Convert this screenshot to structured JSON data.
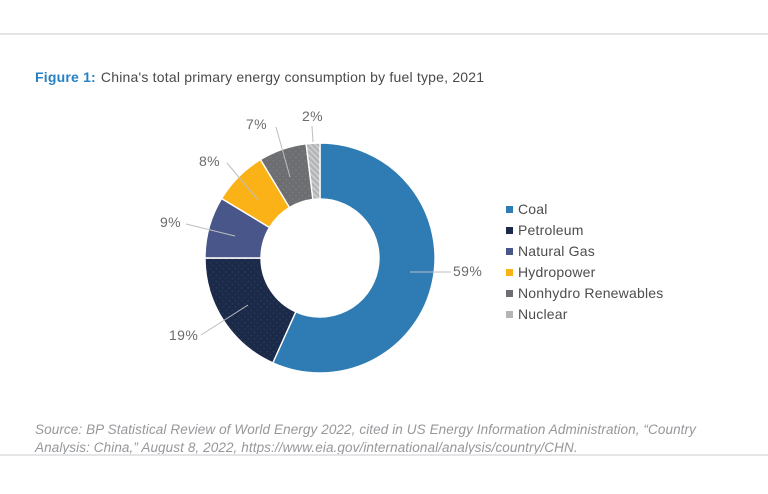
{
  "figure": {
    "label": "Figure 1:",
    "title": "China's total primary energy consumption by fuel type, 2021"
  },
  "source": "Source: BP Statistical Review of World Energy 2022, cited in US Energy Information Administration, “Country Analysis: China,” August 8, 2022, https://www.eia.gov/international/analysis/country/CHN.",
  "colors": {
    "figure_label_blue": "#2581C3",
    "title_text": "#4A4A4C",
    "pct_label_text": "#6A6B6E",
    "leader_line": "#BDBEC0",
    "legend_text": "#4D4D4F",
    "source_text": "#96979A",
    "rule_gray": "#E4E5E6",
    "slice_divider": "#FFFFFF"
  },
  "chart_data": {
    "type": "pie",
    "donut": true,
    "title": "China's total primary energy consumption by fuel type, 2021",
    "unit": "%",
    "legend_position": "right",
    "inner_radius_ratio": 0.51,
    "start_angle_deg": 0,
    "direction": "clockwise",
    "categories": [
      "Coal",
      "Petroleum",
      "Natural Gas",
      "Hydropower",
      "Nonhydro Renewables",
      "Nuclear"
    ],
    "values": [
      59,
      19,
      9,
      8,
      7,
      2
    ],
    "slices": [
      {
        "label": "Coal",
        "value": 59,
        "pct_label": "59%",
        "color": "#2E7CB3",
        "texture": "solid"
      },
      {
        "label": "Petroleum",
        "value": 19,
        "pct_label": "19%",
        "color": "#1B2A48",
        "texture": "dots",
        "accent": "#2E3D5F"
      },
      {
        "label": "Natural Gas",
        "value": 9,
        "pct_label": "9%",
        "color": "#49568A",
        "texture": "solid"
      },
      {
        "label": "Hydropower",
        "value": 8,
        "pct_label": "8%",
        "color": "#FBB217",
        "texture": "solid"
      },
      {
        "label": "Nonhydro Renewables",
        "value": 7,
        "pct_label": "7%",
        "color": "#6D6E71",
        "texture": "dots",
        "accent": "#7F8084"
      },
      {
        "label": "Nuclear",
        "value": 2,
        "pct_label": "2%",
        "color": "#B2B4B6",
        "texture": "hatch",
        "accent": "#D2D3D5"
      }
    ]
  }
}
